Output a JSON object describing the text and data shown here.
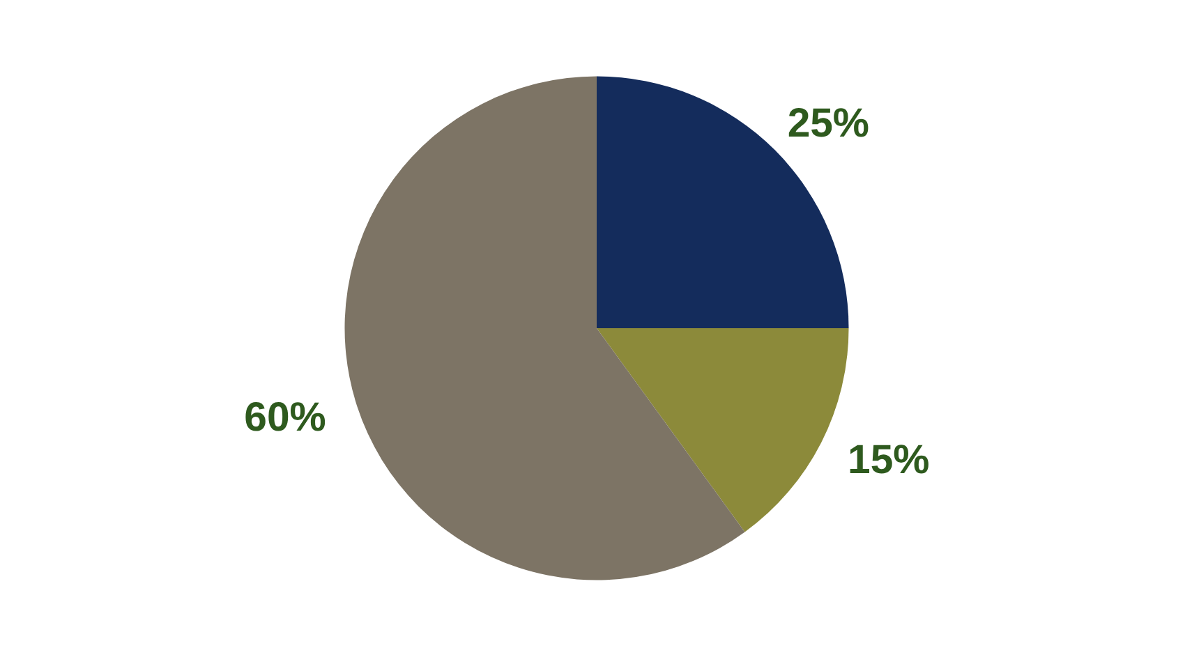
{
  "chart_data": {
    "type": "pie",
    "categories": [
      null,
      null,
      null
    ],
    "values": [
      25,
      15,
      60
    ],
    "colors": [
      "#142c5c",
      "#8c8a3a",
      "#7d7465"
    ],
    "value_labels": [
      "25%",
      "15%",
      "60%"
    ]
  }
}
